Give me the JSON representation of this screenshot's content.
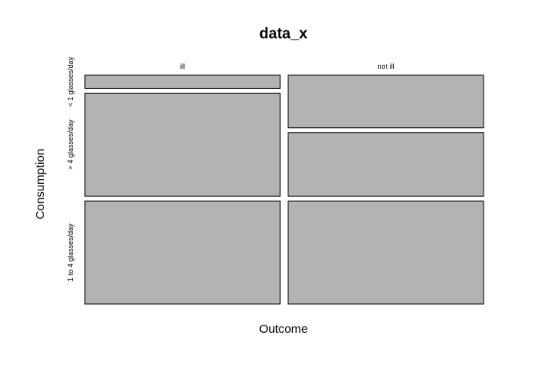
{
  "chart_data": {
    "type": "mosaic",
    "title": "data_x",
    "xlabel": "Outcome",
    "ylabel": "Consumption",
    "x_categories": [
      "ill",
      "not ill"
    ],
    "y_categories": [
      "< 1 glasses/day",
      "> 4 glasses/day",
      "1 to 4 glasses/day"
    ],
    "column_proportions": [
      0.5,
      0.5
    ],
    "cell_proportions": [
      {
        "outcome": "ill",
        "values": [
          0.06,
          0.47,
          0.47
        ]
      },
      {
        "outcome": "not ill",
        "values": [
          0.24,
          0.29,
          0.47
        ]
      }
    ],
    "fill_color": "#b3b3b3",
    "grid": false,
    "legend": "none"
  }
}
